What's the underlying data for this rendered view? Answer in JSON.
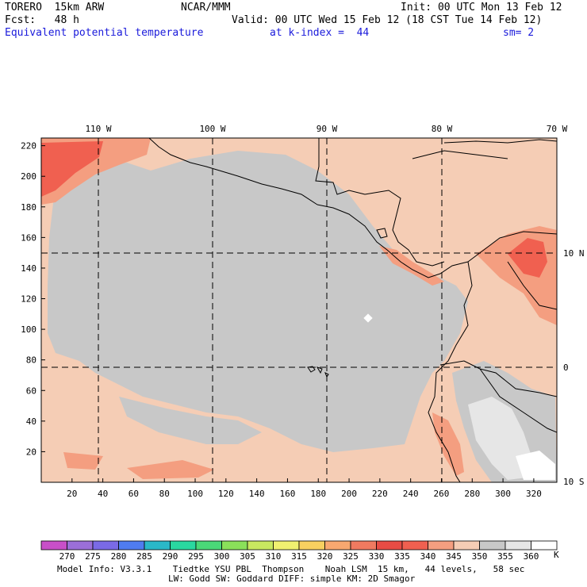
{
  "header": {
    "model": "TORERO  15km ARW",
    "center": "NCAR/MMM",
    "init": "Init: 00 UTC Mon 13 Feb 12",
    "fcst": "Fcst:   48 h",
    "valid": "Valid: 00 UTC Wed 15 Feb 12 (18 CST Tue 14 Feb 12)",
    "field": "Equivalent potential temperature",
    "level": "at k-index =  44",
    "smooth": "sm= 2"
  },
  "map": {
    "top_lon_labels": [
      "110 W",
      "100 W",
      "90 W",
      "80 W",
      "70 W"
    ],
    "right_lat_labels": [
      "10 N",
      "0",
      "10 S"
    ],
    "y_ticks": [
      "220",
      "200",
      "180",
      "160",
      "140",
      "120",
      "100",
      "80",
      "60",
      "40",
      "20"
    ],
    "x_ticks": [
      "20",
      "40",
      "60",
      "80",
      "100",
      "120",
      "140",
      "160",
      "180",
      "200",
      "220",
      "240",
      "260",
      "280",
      "300",
      "320"
    ],
    "x_range": [
      0,
      335
    ],
    "y_range": [
      0,
      225
    ]
  },
  "colorbar": {
    "levels": [
      "270",
      "275",
      "280",
      "285",
      "290",
      "295",
      "300",
      "305",
      "310",
      "315",
      "320",
      "325",
      "330",
      "335",
      "340",
      "345",
      "350",
      "355",
      "360"
    ],
    "unit": "K",
    "colors": [
      "#c84fc8",
      "#9b6fd8",
      "#7a6ae6",
      "#4f7cf0",
      "#2ab8c8",
      "#2ad8a0",
      "#4ad878",
      "#8ae05a",
      "#c8e860",
      "#f0f070",
      "#f8d060",
      "#f8a870",
      "#f07a60",
      "#e84c44",
      "#f06050",
      "#f49e80",
      "#f5cdb5",
      "#c8c8c8",
      "#e6e6e6",
      "#ffffff"
    ]
  },
  "footer": {
    "line1": "Model Info: V3.3.1    Tiedtke YSU PBL  Thompson    Noah LSM  15 km,   44 levels,   58 sec",
    "line2": "LW: Godd SW: Goddard DIFF: simple KM: 2D Smagor"
  },
  "colors": {
    "bg_warm": "#f5cdb5",
    "bg_grey": "#c8c8c8",
    "hot": "#f06050",
    "hot_light": "#f49e80",
    "cool_light": "#e6e6e6",
    "header_blue": "#1a1adb"
  }
}
